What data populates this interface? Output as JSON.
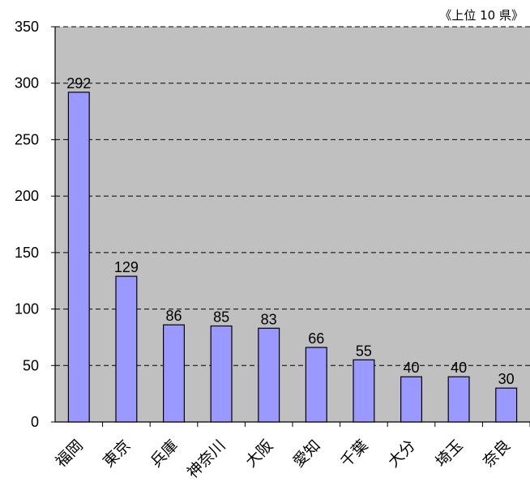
{
  "chart_data": {
    "type": "bar",
    "note": "《上位 10 県》",
    "title": "",
    "xlabel": "",
    "ylabel": "",
    "categories": [
      "福岡",
      "東京",
      "兵庫",
      "神奈川",
      "大阪",
      "愛知",
      "千葉",
      "大分",
      "埼玉",
      "奈良"
    ],
    "values": [
      292,
      129,
      86,
      85,
      83,
      66,
      55,
      40,
      40,
      30
    ],
    "ylim": [
      0,
      350
    ],
    "yticks": [
      0,
      50,
      100,
      150,
      200,
      250,
      300,
      350
    ],
    "grid": true,
    "colors": {
      "plot_bg": "#c0c0c0",
      "bar_fill": "#9999ff",
      "bar_stroke": "#000000",
      "grid": "#000000"
    }
  }
}
